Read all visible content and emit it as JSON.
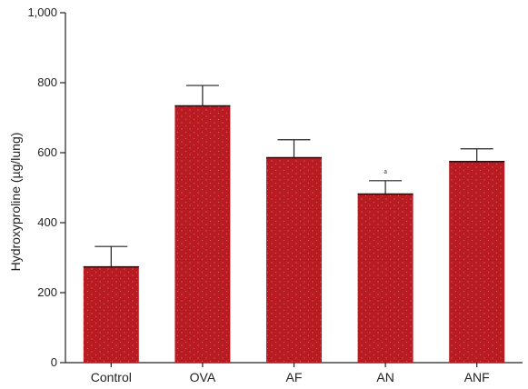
{
  "chart_data": {
    "type": "bar",
    "categories": [
      "Control",
      "OVA",
      "AF",
      "AN",
      "ANF"
    ],
    "values": [
      275,
      735,
      587,
      483,
      576
    ],
    "errors": [
      57,
      57,
      50,
      37,
      35
    ],
    "ylabel": "Hydroxyproline (µg/lung)",
    "xlabel": "",
    "ylim": [
      0,
      1000
    ],
    "yticks": [
      0,
      200,
      400,
      600,
      800,
      1000
    ],
    "ytick_labels": [
      "0",
      "200",
      "400",
      "600",
      "800",
      "1,000"
    ],
    "bar_color": "#b81c22",
    "annotations": [
      {
        "category": "AN",
        "text": "a"
      }
    ],
    "grid": false,
    "legend": "none"
  }
}
